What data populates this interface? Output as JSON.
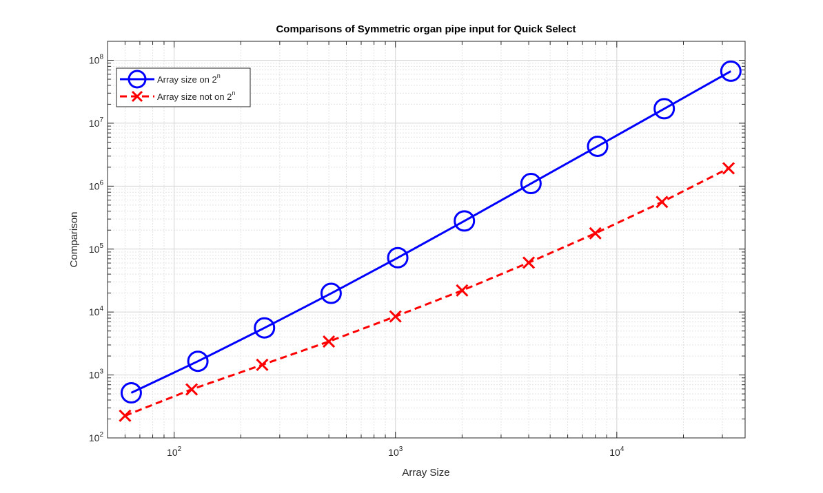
{
  "chart_data": {
    "type": "line",
    "title": "Comparisons of Symmetric organ pipe input for Quick Select",
    "xlabel": "Array Size",
    "ylabel": "Comparison",
    "xscale": "log",
    "yscale": "log",
    "xlim": [
      50,
      38000
    ],
    "ylim": [
      100,
      200000000
    ],
    "grid": true,
    "minor_grid": true,
    "legend_position": "top-left",
    "x_ticks": [
      {
        "value": 100,
        "base": "10",
        "exp": "2"
      },
      {
        "value": 1000,
        "base": "10",
        "exp": "3"
      },
      {
        "value": 10000,
        "base": "10",
        "exp": "4"
      }
    ],
    "y_ticks": [
      {
        "value": 100,
        "base": "10",
        "exp": "2"
      },
      {
        "value": 1000,
        "base": "10",
        "exp": "3"
      },
      {
        "value": 10000,
        "base": "10",
        "exp": "4"
      },
      {
        "value": 100000,
        "base": "10",
        "exp": "5"
      },
      {
        "value": 1000000,
        "base": "10",
        "exp": "6"
      },
      {
        "value": 10000000,
        "base": "10",
        "exp": "7"
      },
      {
        "value": 100000000,
        "base": "10",
        "exp": "8"
      }
    ],
    "series": [
      {
        "name_base": "Array size on 2",
        "name_sup": "n",
        "color": "#0000ff",
        "line": "solid",
        "marker": "circle",
        "x": [
          64,
          128,
          256,
          512,
          1024,
          2048,
          4096,
          8192,
          16384,
          32768
        ],
        "y": [
          520,
          1650,
          5600,
          19800,
          73000,
          280000,
          1100000,
          4300000,
          17000000,
          67000000
        ]
      },
      {
        "name_base": "Array size not on 2",
        "name_sup": "n",
        "color": "#ff0000",
        "line": "dashed",
        "marker": "x",
        "x": [
          60,
          120,
          250,
          500,
          1000,
          2000,
          4000,
          8000,
          16000,
          32000
        ],
        "y": [
          225,
          590,
          1450,
          3400,
          8500,
          22000,
          61000,
          178000,
          560000,
          1920000
        ]
      }
    ]
  }
}
